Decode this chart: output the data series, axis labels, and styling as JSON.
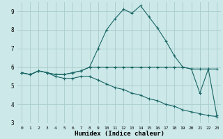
{
  "xlabel": "Humidex (Indice chaleur)",
  "xlim": [
    -0.5,
    23.5
  ],
  "ylim": [
    3,
    9.5
  ],
  "yticks": [
    3,
    4,
    5,
    6,
    7,
    8,
    9
  ],
  "xticks": [
    0,
    1,
    2,
    3,
    4,
    5,
    6,
    7,
    8,
    9,
    10,
    11,
    12,
    13,
    14,
    15,
    16,
    17,
    18,
    19,
    20,
    21,
    22,
    23
  ],
  "background_color": "#cce8e8",
  "grid_color": "#aacccc",
  "line_color": "#1a6666",
  "line1_x": [
    0,
    1,
    2,
    3,
    4,
    5,
    6,
    7,
    8,
    9,
    10,
    11,
    12,
    13,
    14,
    15,
    16,
    17,
    18,
    19,
    20,
    21,
    22,
    23
  ],
  "line1_y": [
    5.7,
    5.6,
    5.8,
    5.7,
    5.6,
    5.6,
    5.7,
    5.8,
    6.0,
    7.0,
    8.0,
    8.6,
    9.1,
    8.9,
    9.3,
    8.7,
    8.1,
    7.4,
    6.6,
    6.0,
    5.9,
    4.6,
    5.9,
    3.4
  ],
  "line2_x": [
    0,
    1,
    2,
    3,
    4,
    5,
    6,
    7,
    8,
    9,
    10,
    11,
    12,
    13,
    14,
    15,
    16,
    17,
    18,
    19,
    20,
    21,
    22,
    23
  ],
  "line2_y": [
    5.7,
    5.6,
    5.8,
    5.7,
    5.6,
    5.6,
    5.7,
    5.8,
    6.0,
    6.0,
    6.0,
    6.0,
    6.0,
    6.0,
    6.0,
    6.0,
    6.0,
    6.0,
    6.0,
    6.0,
    5.9,
    5.9,
    5.9,
    5.9
  ],
  "line3_x": [
    0,
    1,
    2,
    3,
    4,
    5,
    6,
    7,
    8,
    9,
    10,
    11,
    12,
    13,
    14,
    15,
    16,
    17,
    18,
    19,
    20,
    21,
    22,
    23
  ],
  "line3_y": [
    5.7,
    5.6,
    5.8,
    5.7,
    5.5,
    5.4,
    5.4,
    5.5,
    5.5,
    5.3,
    5.1,
    4.9,
    4.8,
    4.6,
    4.5,
    4.3,
    4.2,
    4.0,
    3.9,
    3.7,
    3.6,
    3.5,
    3.4,
    3.35
  ],
  "xlabel_fontsize": 6.5,
  "xtick_fontsize": 4.5,
  "ytick_fontsize": 5.5
}
